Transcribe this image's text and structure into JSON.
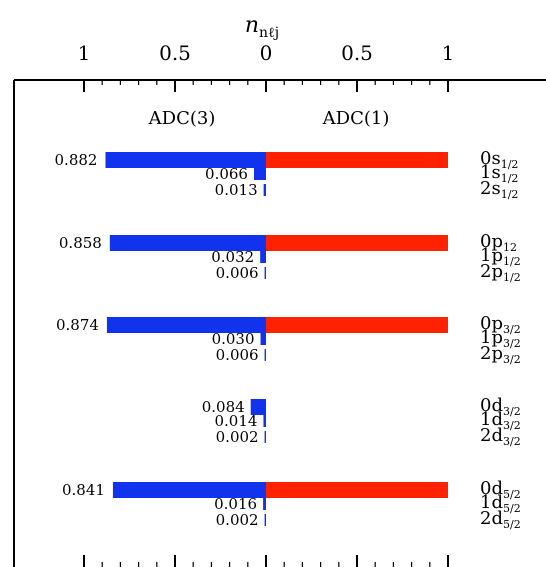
{
  "chart_data": {
    "type": "bar",
    "orientation": "horizontal-diverging",
    "x_axis": {
      "title_main": "n",
      "title_sub": "nℓj",
      "ticks": [
        {
          "value": -1,
          "label": "1"
        },
        {
          "value": -0.5,
          "label": "0.5"
        },
        {
          "value": 0,
          "label": "0"
        },
        {
          "value": 0.5,
          "label": "0.5"
        },
        {
          "value": 1,
          "label": "1"
        }
      ],
      "xlim": [
        -1,
        1
      ]
    },
    "series": [
      {
        "name": "ADC(3)",
        "color": "#1133ee",
        "side": "left"
      },
      {
        "name": "ADC(1)",
        "color": "#ff2200",
        "side": "right"
      }
    ],
    "groups": [
      {
        "rows": [
          {
            "label": "0s",
            "sub": "1/2",
            "adc3": 0.882,
            "adc3_label": "0.882",
            "adc1": 1
          },
          {
            "label": "1s",
            "sub": "1/2",
            "adc3": 0.066,
            "adc3_label": "0.066",
            "adc1": 0
          },
          {
            "label": "2s",
            "sub": "1/2",
            "adc3": 0.013,
            "adc3_label": "0.013",
            "adc1": 0
          }
        ]
      },
      {
        "rows": [
          {
            "label": "0p",
            "sub": "12",
            "adc3": 0.858,
            "adc3_label": "0.858",
            "adc1": 1
          },
          {
            "label": "1p",
            "sub": "1/2",
            "adc3": 0.032,
            "adc3_label": "0.032",
            "adc1": 0
          },
          {
            "label": "2p",
            "sub": "1/2",
            "adc3": 0.006,
            "adc3_label": "0.006",
            "adc1": 0
          }
        ]
      },
      {
        "rows": [
          {
            "label": "0p",
            "sub": "3/2",
            "adc3": 0.874,
            "adc3_label": "0.874",
            "adc1": 1
          },
          {
            "label": "1p",
            "sub": "3/2",
            "adc3": 0.03,
            "adc3_label": "0.030",
            "adc1": 0
          },
          {
            "label": "2p",
            "sub": "3/2",
            "adc3": 0.006,
            "adc3_label": "0.006",
            "adc1": 0
          }
        ]
      },
      {
        "rows": [
          {
            "label": "0d",
            "sub": "3/2",
            "adc3": 0.084,
            "adc3_label": "0.084",
            "adc1": 0
          },
          {
            "label": "1d",
            "sub": "3/2",
            "adc3": 0.014,
            "adc3_label": "0.014",
            "adc1": 0
          },
          {
            "label": "2d",
            "sub": "3/2",
            "adc3": 0.002,
            "adc3_label": "0.002",
            "adc1": 0
          }
        ]
      },
      {
        "rows": [
          {
            "label": "0d",
            "sub": "5/2",
            "adc3": 0.841,
            "adc3_label": "0.841",
            "adc1": 1
          },
          {
            "label": "1d",
            "sub": "5/2",
            "adc3": 0.016,
            "adc3_label": "0.016",
            "adc1": 0
          },
          {
            "label": "2d",
            "sub": "5/2",
            "adc3": 0.002,
            "adc3_label": "0.002",
            "adc1": 0
          }
        ]
      }
    ]
  }
}
